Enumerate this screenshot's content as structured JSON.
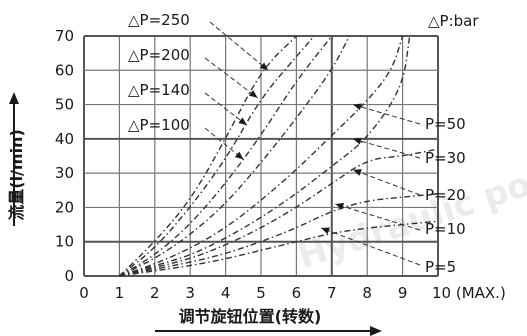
{
  "chart_data": {
    "type": "line",
    "unit_note": "△P:bar",
    "xlabel": "调节旋钮位置(转数)",
    "ylabel": "流量(l/min)",
    "xlim": [
      0,
      10
    ],
    "ylim": [
      0,
      70
    ],
    "x_ticks": [
      "0",
      "1",
      "2",
      "3",
      "4",
      "5",
      "6",
      "7",
      "8",
      "9",
      "10 (MAX.)"
    ],
    "y_ticks": [
      "0",
      "10",
      "20",
      "30",
      "40",
      "50",
      "60",
      "70"
    ],
    "grid": true,
    "series": [
      {
        "name": "△P=250",
        "x": [
          1,
          2,
          3,
          4,
          5,
          6
        ],
        "y": [
          0,
          10,
          22,
          40,
          60,
          70
        ]
      },
      {
        "name": "△P=200",
        "x": [
          1,
          2,
          3,
          4,
          5,
          6,
          6.5
        ],
        "y": [
          0,
          8,
          20,
          34,
          52,
          64,
          70
        ]
      },
      {
        "name": "△P=140",
        "x": [
          1,
          2,
          3,
          4,
          5,
          6,
          7
        ],
        "y": [
          0,
          6,
          15,
          27,
          41,
          57,
          70
        ]
      },
      {
        "name": "△P=100",
        "x": [
          1,
          2,
          3,
          4,
          5,
          6,
          7,
          7.5
        ],
        "y": [
          0,
          5,
          12,
          21,
          33,
          46,
          60,
          70
        ]
      },
      {
        "name": "P=50",
        "x": [
          1,
          2,
          3,
          4,
          5,
          6,
          7,
          8,
          8.7,
          9
        ],
        "y": [
          0,
          3.5,
          8,
          14,
          22,
          31,
          41,
          51,
          60,
          70
        ]
      },
      {
        "name": "P=30",
        "x": [
          1,
          2,
          3,
          4,
          5,
          6,
          7,
          8,
          9,
          9.2
        ],
        "y": [
          0,
          3,
          6,
          11,
          17,
          24,
          32,
          40,
          55,
          70
        ]
      },
      {
        "name": "P=20",
        "x": [
          1,
          2,
          3,
          4,
          5,
          6,
          7,
          8,
          9,
          10
        ],
        "y": [
          0,
          2.5,
          5,
          9,
          14,
          20,
          27,
          34,
          35,
          37
        ]
      },
      {
        "name": "P=10",
        "x": [
          1,
          2,
          3,
          4,
          5,
          6,
          7,
          8,
          9,
          10
        ],
        "y": [
          0,
          2,
          4,
          6.5,
          10,
          14,
          19,
          22,
          23,
          24
        ]
      },
      {
        "name": "P=5",
        "x": [
          1,
          2,
          3,
          4,
          5,
          6,
          7,
          8,
          9,
          10
        ],
        "y": [
          0,
          1.5,
          3,
          5,
          7.5,
          10,
          12.5,
          14,
          15,
          16
        ]
      }
    ],
    "watermark": "Hydraulic power"
  }
}
